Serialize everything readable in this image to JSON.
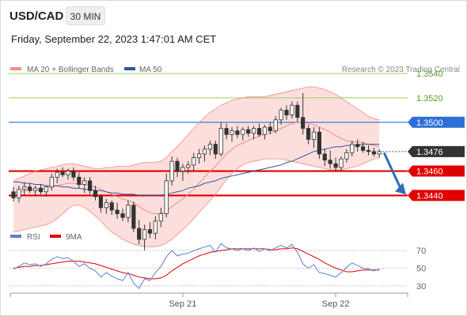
{
  "header": {
    "symbol": "USD/CAD",
    "timeframe": "30 MIN",
    "datetime": "Friday, September 22, 2023 1:47:01 AM CET"
  },
  "credit": "Research © 2023 Trading Central",
  "colors": {
    "bollinger": "#f28b85",
    "ma50": "#2f5597",
    "support": "#e00000",
    "resistance": "#2f6fd6",
    "target_line": "#9ccc65",
    "candle": "#333333",
    "arrow": "#2f6fb0",
    "rsi": "#5b7fd6",
    "rsi_ma": "#e00000"
  },
  "chart_data": [
    {
      "type": "candlestick",
      "legend": [
        {
          "name": "MA 20 + Bollinger Bands",
          "color": "#f28b85"
        },
        {
          "name": "MA 50",
          "color": "#2f5597"
        }
      ],
      "ylim": [
        1.3415,
        1.3553
      ],
      "x_ticks": [
        {
          "label": "Sep 21",
          "index": 31
        },
        {
          "label": "Sep 22",
          "index": 59
        }
      ],
      "levels": [
        {
          "label": "1.3540",
          "value": 1.354,
          "kind": "target"
        },
        {
          "label": "1.3520",
          "value": 1.352,
          "kind": "target"
        },
        {
          "label": "1.3500",
          "value": 1.35,
          "kind": "resistance"
        },
        {
          "label": "1.3476",
          "value": 1.3476,
          "kind": "last"
        },
        {
          "label": "1.3460",
          "value": 1.346,
          "kind": "support"
        },
        {
          "label": "1.3440",
          "value": 1.344,
          "kind": "support"
        }
      ],
      "forecast_arrow": {
        "from_value": 1.3475,
        "to_value": 1.3442,
        "direction": "down"
      },
      "ohlc": [
        [
          1.3443,
          1.3447,
          1.3435,
          1.3438
        ],
        [
          1.3438,
          1.3448,
          1.3434,
          1.3445
        ],
        [
          1.3445,
          1.3451,
          1.344,
          1.3447
        ],
        [
          1.3447,
          1.345,
          1.3442,
          1.3444
        ],
        [
          1.3444,
          1.3448,
          1.344,
          1.3446
        ],
        [
          1.3446,
          1.3449,
          1.3441,
          1.3443
        ],
        [
          1.3443,
          1.3448,
          1.3439,
          1.3447
        ],
        [
          1.3447,
          1.3458,
          1.3444,
          1.3455
        ],
        [
          1.3455,
          1.3462,
          1.345,
          1.3459
        ],
        [
          1.3459,
          1.3463,
          1.3455,
          1.3457
        ],
        [
          1.3457,
          1.3462,
          1.3453,
          1.346
        ],
        [
          1.346,
          1.3463,
          1.3452,
          1.3455
        ],
        [
          1.3455,
          1.3459,
          1.3446,
          1.3449
        ],
        [
          1.3449,
          1.3455,
          1.3442,
          1.3452
        ],
        [
          1.3452,
          1.3455,
          1.3441,
          1.3444
        ],
        [
          1.3444,
          1.3448,
          1.3436,
          1.3439
        ],
        [
          1.3439,
          1.3441,
          1.3426,
          1.343
        ],
        [
          1.343,
          1.3437,
          1.3425,
          1.3434
        ],
        [
          1.3434,
          1.3436,
          1.3424,
          1.3428
        ],
        [
          1.3428,
          1.3434,
          1.3421,
          1.3425
        ],
        [
          1.3425,
          1.3429,
          1.3419,
          1.3422
        ],
        [
          1.3422,
          1.3436,
          1.3418,
          1.3432
        ],
        [
          1.3432,
          1.3435,
          1.341,
          1.3413
        ],
        [
          1.3413,
          1.342,
          1.34,
          1.3404
        ],
        [
          1.3404,
          1.3416,
          1.3395,
          1.3412
        ],
        [
          1.3412,
          1.3418,
          1.3405,
          1.3409
        ],
        [
          1.3409,
          1.3423,
          1.3404,
          1.3419
        ],
        [
          1.3419,
          1.343,
          1.3414,
          1.3425
        ],
        [
          1.3425,
          1.3458,
          1.3422,
          1.3452
        ],
        [
          1.3452,
          1.3472,
          1.3448,
          1.3468
        ],
        [
          1.3468,
          1.3471,
          1.3455,
          1.346
        ],
        [
          1.346,
          1.3466,
          1.3452,
          1.3463
        ],
        [
          1.3463,
          1.3468,
          1.3458,
          1.3465
        ],
        [
          1.3465,
          1.3475,
          1.346,
          1.3471
        ],
        [
          1.3471,
          1.3478,
          1.3466,
          1.3474
        ],
        [
          1.3474,
          1.3481,
          1.3468,
          1.3478
        ],
        [
          1.3478,
          1.3485,
          1.3473,
          1.3482
        ],
        [
          1.3482,
          1.3485,
          1.347,
          1.3474
        ],
        [
          1.3474,
          1.35,
          1.3472,
          1.3495
        ],
        [
          1.3495,
          1.3499,
          1.3486,
          1.349
        ],
        [
          1.349,
          1.3496,
          1.3484,
          1.3493
        ],
        [
          1.3493,
          1.3497,
          1.3487,
          1.349
        ],
        [
          1.349,
          1.3496,
          1.3485,
          1.3494
        ],
        [
          1.3494,
          1.3497,
          1.3488,
          1.3491
        ],
        [
          1.3491,
          1.3497,
          1.3486,
          1.3495
        ],
        [
          1.3495,
          1.3499,
          1.3488,
          1.349
        ],
        [
          1.349,
          1.3498,
          1.3486,
          1.3496
        ],
        [
          1.3496,
          1.35,
          1.349,
          1.3493
        ],
        [
          1.3493,
          1.3505,
          1.3491,
          1.3502
        ],
        [
          1.3502,
          1.3512,
          1.3498,
          1.351
        ],
        [
          1.351,
          1.3514,
          1.3502,
          1.3506
        ],
        [
          1.3506,
          1.3517,
          1.3503,
          1.3514
        ],
        [
          1.3514,
          1.3517,
          1.35,
          1.3504
        ],
        [
          1.3504,
          1.3524,
          1.349,
          1.3495
        ],
        [
          1.3495,
          1.3498,
          1.3482,
          1.3486
        ],
        [
          1.3486,
          1.3496,
          1.3479,
          1.3492
        ],
        [
          1.3492,
          1.3496,
          1.347,
          1.3474
        ],
        [
          1.3474,
          1.3478,
          1.3464,
          1.3469
        ],
        [
          1.3469,
          1.3477,
          1.3462,
          1.3466
        ],
        [
          1.3466,
          1.3471,
          1.346,
          1.3463
        ],
        [
          1.3463,
          1.3472,
          1.346,
          1.347
        ],
        [
          1.347,
          1.3478,
          1.3467,
          1.3475
        ],
        [
          1.3475,
          1.3485,
          1.3472,
          1.3482
        ],
        [
          1.3482,
          1.3486,
          1.3476,
          1.348
        ],
        [
          1.348,
          1.3484,
          1.3475,
          1.3477
        ],
        [
          1.3477,
          1.3481,
          1.3473,
          1.3476
        ],
        [
          1.3476,
          1.3479,
          1.3472,
          1.3474
        ],
        [
          1.3474,
          1.3478,
          1.3471,
          1.3476
        ]
      ],
      "ma20": [
        1.3442,
        1.3443,
        1.3444,
        1.3444,
        1.3445,
        1.3445,
        1.3446,
        1.3447,
        1.3448,
        1.3449,
        1.345,
        1.345,
        1.3449,
        1.3449,
        1.3448,
        1.3447,
        1.3445,
        1.3443,
        1.3441,
        1.3439,
        1.3437,
        1.3436,
        1.3434,
        1.3431,
        1.3428,
        1.3426,
        1.3425,
        1.3425,
        1.3427,
        1.3431,
        1.3434,
        1.3437,
        1.3441,
        1.3445,
        1.345,
        1.3455,
        1.346,
        1.3464,
        1.3469,
        1.3474,
        1.3478,
        1.3481,
        1.3483,
        1.3485,
        1.3487,
        1.3489,
        1.349,
        1.3491,
        1.3493,
        1.3495,
        1.3497,
        1.3499,
        1.35,
        1.35,
        1.3499,
        1.3498,
        1.3496,
        1.3494,
        1.3492,
        1.3489,
        1.3487,
        1.3485,
        1.3484,
        1.3484,
        1.3483,
        1.3482,
        1.3481,
        1.348
      ],
      "bb_upper": [
        1.3452,
        1.3454,
        1.3456,
        1.3458,
        1.346,
        1.3461,
        1.3462,
        1.3463,
        1.3464,
        1.3465,
        1.3466,
        1.3466,
        1.3465,
        1.3464,
        1.3463,
        1.3462,
        1.3462,
        1.3463,
        1.3463,
        1.3464,
        1.3464,
        1.3464,
        1.3465,
        1.3466,
        1.3467,
        1.3467,
        1.3467,
        1.3468,
        1.3471,
        1.3476,
        1.348,
        1.3485,
        1.349,
        1.3495,
        1.35,
        1.3504,
        1.3508,
        1.3511,
        1.3514,
        1.3516,
        1.3518,
        1.3519,
        1.352,
        1.3521,
        1.3521,
        1.3521,
        1.3521,
        1.3522,
        1.3523,
        1.3524,
        1.3525,
        1.3526,
        1.3527,
        1.3528,
        1.3529,
        1.3529,
        1.3528,
        1.3527,
        1.3525,
        1.3523,
        1.352,
        1.3517,
        1.3514,
        1.3511,
        1.3508,
        1.3505,
        1.3503,
        1.3502
      ],
      "bb_lower": [
        1.341,
        1.3411,
        1.3412,
        1.3413,
        1.3414,
        1.3415,
        1.3416,
        1.3418,
        1.3421,
        1.3425,
        1.3429,
        1.3432,
        1.3432,
        1.343,
        1.3427,
        1.3423,
        1.3419,
        1.3414,
        1.341,
        1.3407,
        1.3404,
        1.3402,
        1.34,
        1.3399,
        1.3398,
        1.3398,
        1.3398,
        1.3399,
        1.3401,
        1.3404,
        1.3408,
        1.3412,
        1.3416,
        1.3421,
        1.3426,
        1.3431,
        1.3436,
        1.3441,
        1.3447,
        1.3453,
        1.3458,
        1.3462,
        1.3465,
        1.3467,
        1.3468,
        1.3469,
        1.347,
        1.347,
        1.347,
        1.347,
        1.3469,
        1.3468,
        1.3467,
        1.3466,
        1.3465,
        1.3464,
        1.3463,
        1.3462,
        1.3461,
        1.3461,
        1.3461,
        1.3462,
        1.3463,
        1.3464,
        1.3466,
        1.3468,
        1.347,
        1.3471
      ],
      "ma50": [
        1.3451,
        1.3451,
        1.345,
        1.345,
        1.3449,
        1.3449,
        1.3448,
        1.3448,
        1.3448,
        1.3447,
        1.3447,
        1.3446,
        1.3446,
        1.3445,
        1.3445,
        1.3444,
        1.3444,
        1.3443,
        1.3442,
        1.3442,
        1.3441,
        1.3441,
        1.3441,
        1.344,
        1.344,
        1.344,
        1.344,
        1.344,
        1.3441,
        1.3442,
        1.3443,
        1.3444,
        1.3446,
        1.3447,
        1.3448,
        1.345,
        1.3451,
        1.3452,
        1.3454,
        1.3455,
        1.3456,
        1.3457,
        1.3458,
        1.3459,
        1.346,
        1.3461,
        1.3462,
        1.3463,
        1.3464,
        1.3465,
        1.3467,
        1.3468,
        1.347,
        1.3472,
        1.3474,
        1.3476,
        1.3477,
        1.3478,
        1.3479,
        1.348,
        1.348,
        1.3481,
        1.3481,
        1.3481,
        1.3482,
        1.3482,
        1.3482,
        1.3482
      ]
    },
    {
      "type": "line",
      "legend": [
        {
          "name": "RSI",
          "color": "#5b7fd6"
        },
        {
          "name": "9MA",
          "color": "#e00000"
        }
      ],
      "ylim": [
        20,
        80
      ],
      "y_ticks": [
        70,
        50,
        30
      ],
      "series": [
        {
          "name": "RSI",
          "values": [
            49,
            52,
            56,
            54,
            55,
            52,
            55,
            60,
            63,
            61,
            62,
            58,
            52,
            55,
            50,
            47,
            40,
            45,
            41,
            38,
            36,
            45,
            33,
            27,
            38,
            36,
            45,
            52,
            63,
            70,
            64,
            66,
            67,
            70,
            72,
            74,
            76,
            68,
            78,
            73,
            72,
            70,
            72,
            70,
            73,
            69,
            72,
            70,
            73,
            76,
            73,
            77,
            68,
            55,
            50,
            54,
            45,
            44,
            42,
            40,
            45,
            51,
            56,
            53,
            50,
            49,
            47,
            49
          ]
        },
        {
          "name": "9MA",
          "values": [
            50,
            51,
            52,
            52,
            53,
            53,
            54,
            55,
            56,
            57,
            58,
            58,
            58,
            57,
            56,
            55,
            53,
            51,
            49,
            47,
            45,
            44,
            42,
            40,
            39,
            38,
            38,
            39,
            42,
            47,
            51,
            55,
            58,
            61,
            64,
            66,
            68,
            69,
            70,
            71,
            72,
            72,
            72,
            72,
            72,
            72,
            72,
            71,
            71,
            72,
            72,
            73,
            72,
            69,
            66,
            63,
            60,
            56,
            53,
            50,
            48,
            46,
            46,
            47,
            48,
            48,
            48,
            48
          ]
        }
      ],
      "levels": [
        {
          "label": "70",
          "value": 70
        },
        {
          "label": "50",
          "value": 50
        },
        {
          "label": "30",
          "value": 30
        }
      ]
    }
  ]
}
